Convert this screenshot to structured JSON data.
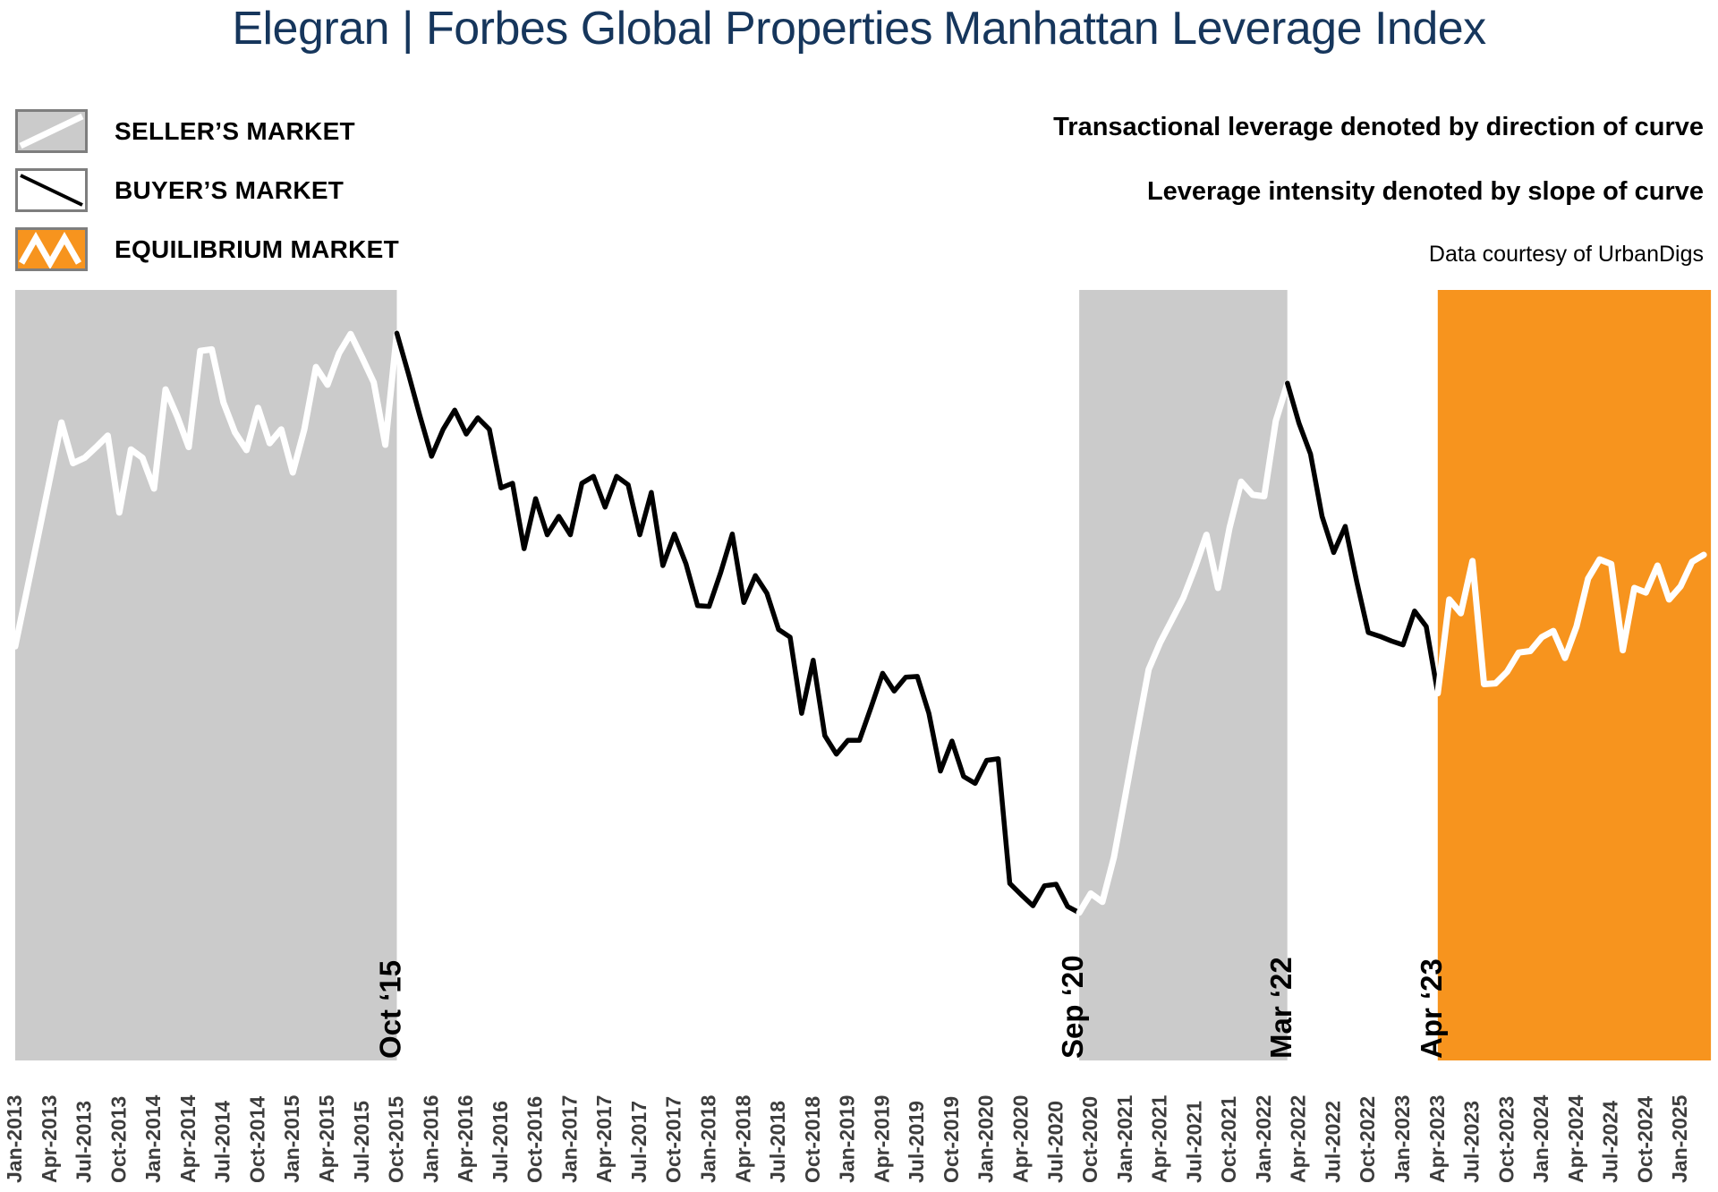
{
  "title": {
    "brand": "Elegran | Forbes Global Properties",
    "suffix": "Manhattan Leverage Index"
  },
  "legend": [
    {
      "label": "SELLER’S MARKET",
      "swatch": "sellers-market-swatch"
    },
    {
      "label": "BUYER’S MARKET",
      "swatch": "buyers-market-swatch"
    },
    {
      "label": "EQUILIBRIUM MARKET",
      "swatch": "equilibrium-market-swatch"
    }
  ],
  "notes": {
    "line1": "Transactional leverage denoted by direction of curve",
    "line2": "Leverage intensity denoted by slope of curve",
    "credit": "Data courtesy of UrbanDigs"
  },
  "colors": {
    "navy": "#16365C",
    "region_gray": "#CBCBCB",
    "region_orange": "#F7941E",
    "line_white": "#FFFFFF",
    "line_black": "#000000",
    "axis_text": "#3D3D3D",
    "swatch_border": "#7E7E7E"
  },
  "chart_data": {
    "type": "line",
    "title": "Elegran | Forbes Global Properties Manhattan Leverage Index",
    "x_start": "Jan-2013",
    "frequency": "monthly",
    "y_axis": {
      "visible": false,
      "implied_range": [
        0,
        100
      ]
    },
    "grid": false,
    "values": [
      53.8,
      61.0,
      68.3,
      75.6,
      82.9,
      77.6,
      78.3,
      79.7,
      81.2,
      71.2,
      79.4,
      78.3,
      74.3,
      87.2,
      83.7,
      79.7,
      92.2,
      92.4,
      85.5,
      81.6,
      79.3,
      84.8,
      80.2,
      82.0,
      76.4,
      82.0,
      90.1,
      87.8,
      91.9,
      94.4,
      91.3,
      88.1,
      80.0,
      94.5,
      89.2,
      83.7,
      78.5,
      82.0,
      84.5,
      81.4,
      83.5,
      82.0,
      74.4,
      75.0,
      66.5,
      73.0,
      68.3,
      70.7,
      68.3,
      75.0,
      75.9,
      71.9,
      75.9,
      74.8,
      68.3,
      73.8,
      64.3,
      68.4,
      64.5,
      59.1,
      59.0,
      63.4,
      68.4,
      59.5,
      63.0,
      60.7,
      56.0,
      55.0,
      45.1,
      52.0,
      42.2,
      39.8,
      41.6,
      41.6,
      45.9,
      50.3,
      48.0,
      49.8,
      49.9,
      45.1,
      37.6,
      41.5,
      36.9,
      36.0,
      39.0,
      39.2,
      23.0,
      21.5,
      20.1,
      22.7,
      22.9,
      20.0,
      19.2,
      21.7,
      20.6,
      26.4,
      34.5,
      42.7,
      50.8,
      54.3,
      57.2,
      60.1,
      64.0,
      68.3,
      61.4,
      69.2,
      75.2,
      73.5,
      73.3,
      83.1,
      88.0,
      82.8,
      78.8,
      70.7,
      66.0,
      69.4,
      62.2,
      55.6,
      55.1,
      54.5,
      54.0,
      58.4,
      56.4,
      47.7,
      59.9,
      58.1,
      64.9,
      48.9,
      49.0,
      50.5,
      53.0,
      53.2,
      55.0,
      55.8,
      52.3,
      56.4,
      62.6,
      65.1,
      64.5,
      53.3,
      61.4,
      60.8,
      64.3,
      59.9,
      61.6,
      64.8,
      65.7
    ],
    "x_tick_labels": [
      "Jan-2013",
      "Apr-2013",
      "Jul-2013",
      "Oct-2013",
      "Jan-2014",
      "Apr-2014",
      "Jul-2014",
      "Oct-2014",
      "Jan-2015",
      "Apr-2015",
      "Jul-2015",
      "Oct-2015",
      "Jan-2016",
      "Apr-2016",
      "Jul-2016",
      "Oct-2016",
      "Jan-2017",
      "Apr-2017",
      "Jul-2017",
      "Oct-2017",
      "Jan-2018",
      "Apr-2018",
      "Jul-2018",
      "Oct-2018",
      "Jan-2019",
      "Apr-2019",
      "Jul-2019",
      "Oct-2019",
      "Jan-2020",
      "Apr-2020",
      "Jul-2020",
      "Oct-2020",
      "Jan-2021",
      "Apr-2021",
      "Jul-2021",
      "Oct-2021",
      "Jan-2022",
      "Apr-2022",
      "Jul-2022",
      "Oct-2022",
      "Jan-2023",
      "Apr-2023",
      "Jul-2023",
      "Oct-2023",
      "Jan-2024",
      "Apr-2024",
      "Jul-2024",
      "Oct-2024",
      "Jan-2025"
    ],
    "regions": [
      {
        "market": "sellers",
        "from": "Jan-2013",
        "to": "Oct-2015",
        "fill": "gray"
      },
      {
        "market": "buyers",
        "from": "Oct-2015",
        "to": "Sep-2020",
        "fill": null
      },
      {
        "market": "sellers",
        "from": "Sep-2020",
        "to": "Mar-2022",
        "fill": "gray"
      },
      {
        "market": "buyers",
        "from": "Mar-2022",
        "to": "Apr-2023",
        "fill": null
      },
      {
        "market": "equilibrium",
        "from": "Apr-2023",
        "to": "Mar-2025",
        "fill": "orange"
      }
    ],
    "boundary_labels": [
      {
        "text": "Oct ‘15",
        "month": "Oct-2015"
      },
      {
        "text": "Sep ‘20",
        "month": "Sep-2020"
      },
      {
        "text": "Mar ‘22",
        "month": "Mar-2022"
      },
      {
        "text": "Apr ‘23",
        "month": "Apr-2023"
      }
    ],
    "line_segments": [
      {
        "from": "Jan-2013",
        "to": "Oct-2015",
        "color": "white"
      },
      {
        "from": "Oct-2015",
        "to": "Sep-2020",
        "color": "black"
      },
      {
        "from": "Sep-2020",
        "to": "Mar-2022",
        "color": "white"
      },
      {
        "from": "Mar-2022",
        "to": "Apr-2023",
        "color": "black"
      },
      {
        "from": "Apr-2023",
        "to": "Mar-2025",
        "color": "white"
      }
    ]
  }
}
